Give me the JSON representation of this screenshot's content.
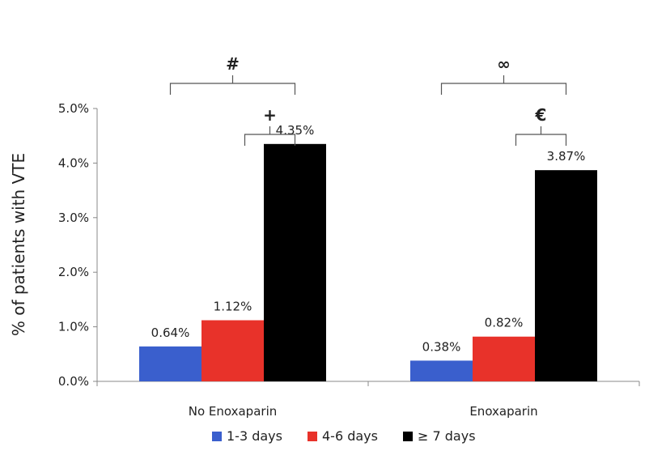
{
  "chart_data": {
    "type": "bar",
    "categories": [
      "No Enoxaparin",
      "Enoxaparin"
    ],
    "series": [
      {
        "name": "1-3 days",
        "values": [
          0.64,
          0.38
        ],
        "labels": [
          "0.64%",
          "0.38%"
        ],
        "color": "#3a5fcd"
      },
      {
        "name": "4-6 days",
        "values": [
          1.12,
          0.82
        ],
        "labels": [
          "1.12%",
          "0.82%"
        ],
        "color": "#e8322a"
      },
      {
        "name": "≥ 7 days",
        "values": [
          4.35,
          3.87
        ],
        "labels": [
          "4.35%",
          "3.87%"
        ],
        "color": "#000000"
      }
    ],
    "ylabel": "% of patients with VTE",
    "ylim": [
      0,
      5
    ],
    "yticks": [
      0,
      1,
      2,
      3,
      4,
      5
    ],
    "ytick_labels": [
      "0.0%",
      "1.0%",
      "2.0%",
      "3.0%",
      "4.0%",
      "5.0%"
    ],
    "legend_position": "bottom",
    "grid": false,
    "significance": [
      {
        "category": 0,
        "from_series": 0,
        "to_series": 2,
        "symbol": "#"
      },
      {
        "category": 0,
        "from_series": 1,
        "to_series": 2,
        "symbol": "+"
      },
      {
        "category": 1,
        "from_series": 0,
        "to_series": 2,
        "symbol": "∞"
      },
      {
        "category": 1,
        "from_series": 1,
        "to_series": 2,
        "symbol": "€"
      }
    ]
  }
}
